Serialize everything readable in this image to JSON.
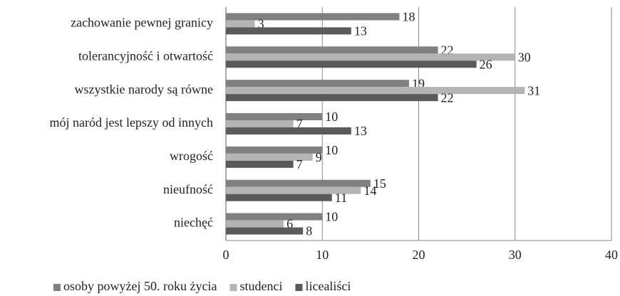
{
  "chart_data": {
    "type": "hbar",
    "categories": [
      "zachowanie pewnej granicy",
      "tolerancyjność i otwartość",
      "wszystkie narody są równe",
      "mój naród jest lepszy od innych",
      "wrogość",
      "nieufność",
      "niechęć"
    ],
    "series": [
      {
        "name": "osoby powyżej 50. roku życia",
        "color": "#808080",
        "values": [
          18,
          22,
          19,
          10,
          10,
          15,
          10
        ]
      },
      {
        "name": "studenci",
        "color": "#b4b4b4",
        "values": [
          3,
          30,
          31,
          7,
          9,
          14,
          6
        ]
      },
      {
        "name": "licealiści",
        "color": "#5a5a5a",
        "values": [
          13,
          26,
          22,
          13,
          7,
          11,
          8
        ]
      }
    ],
    "xlim": [
      0,
      40
    ],
    "xticks": [
      0,
      10,
      20,
      30,
      40
    ],
    "grid": true,
    "legend": "bottom"
  }
}
